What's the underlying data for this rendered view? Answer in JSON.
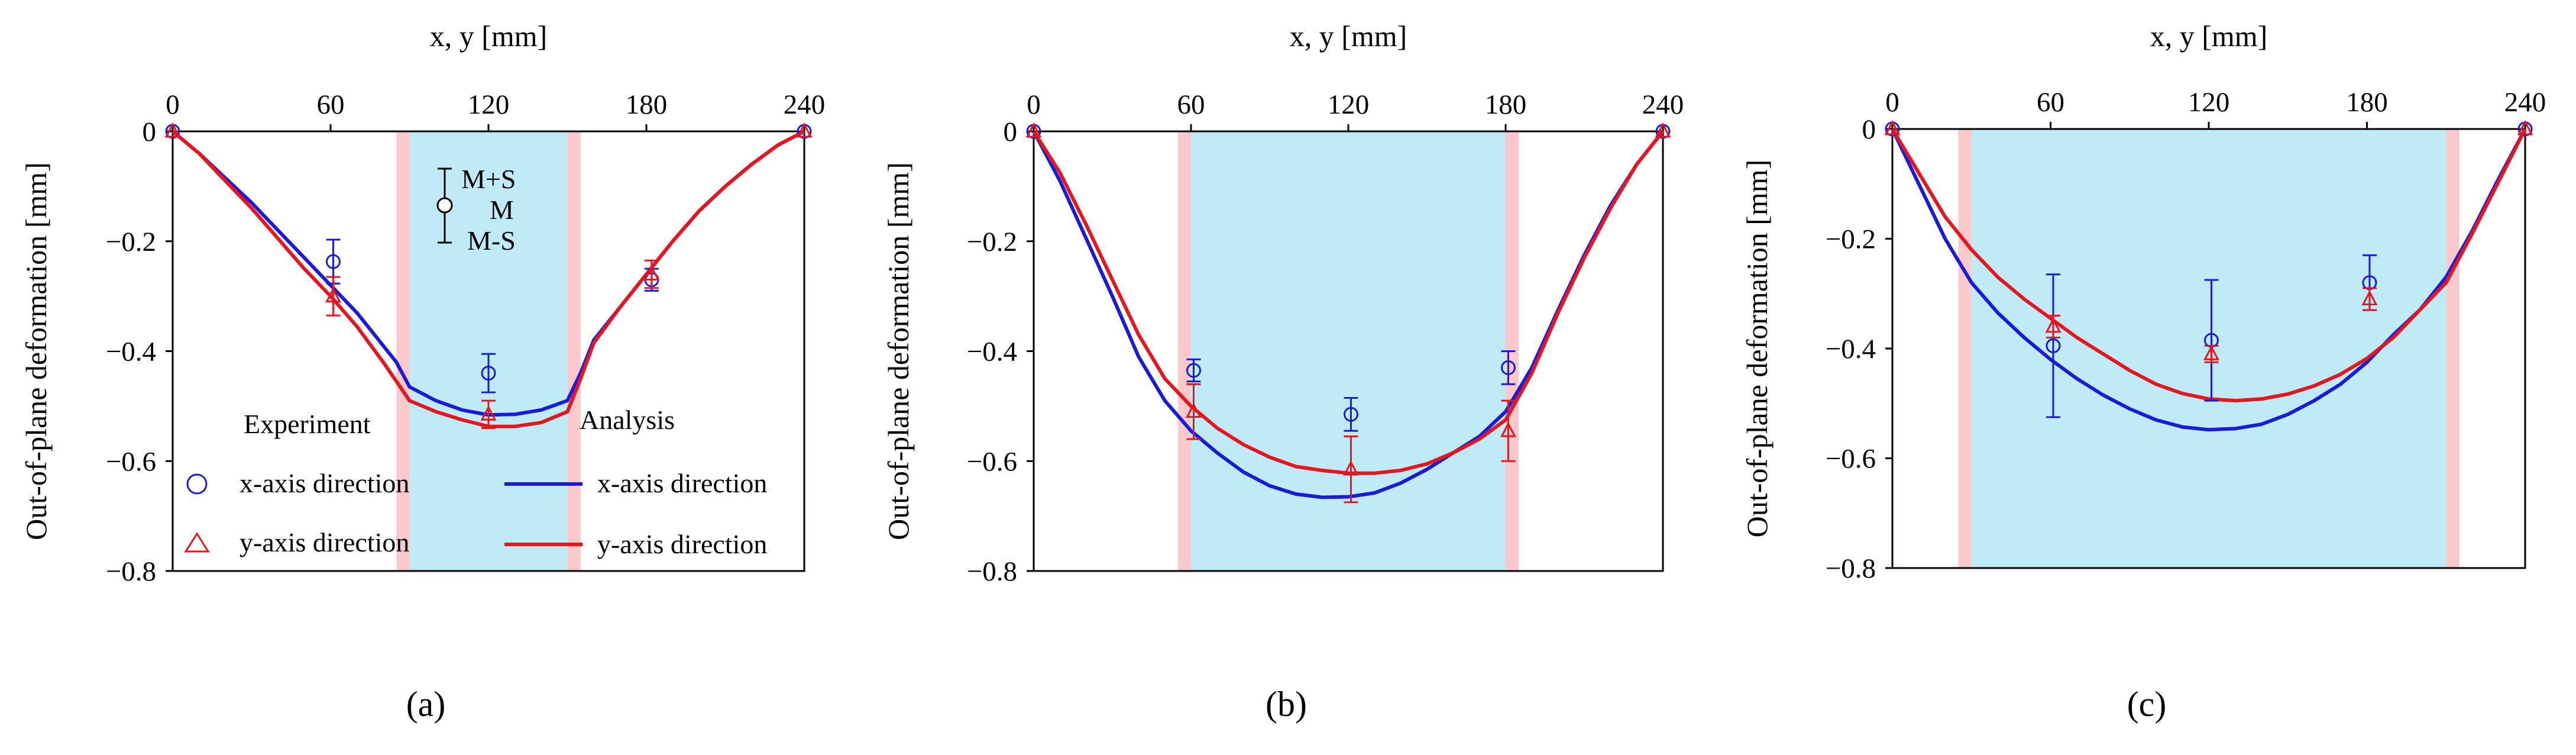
{
  "chart_data": [
    {
      "type": "line",
      "panel": "a",
      "caption": "(a)",
      "xlabel": "x, y [mm]",
      "ylabel": "Out-of-plane  deformation  [mm]",
      "xlim": [
        0,
        240
      ],
      "ylim": [
        -0.8,
        0
      ],
      "xticks": [
        0,
        60,
        120,
        180,
        240
      ],
      "yticks": [
        0,
        -0.2,
        -0.4,
        -0.6,
        -0.8
      ],
      "x_tick_labels": [
        "0",
        "60",
        "120",
        "180",
        "240"
      ],
      "y_tick_labels": [
        "0",
        "−0.2",
        "−0.4",
        "−0.6",
        "−0.8"
      ],
      "shaded_region": {
        "x": [
          90,
          150
        ],
        "color": "#bfeaf8"
      },
      "boundary_bands": [
        {
          "x": [
            85,
            90
          ],
          "color": "#f9c9cc"
        },
        {
          "x": [
            150,
            155
          ],
          "color": "#f9c9cc"
        }
      ],
      "series": [
        {
          "name": "x-axis  direction",
          "kind": "analysis",
          "color": "#1a1adb",
          "x": [
            0,
            10,
            20,
            30,
            40,
            50,
            60,
            70,
            80,
            85,
            90,
            100,
            110,
            120,
            130,
            140,
            150,
            155,
            160,
            170,
            180,
            190,
            200,
            210,
            220,
            230,
            240
          ],
          "y": [
            0,
            -0.04,
            -0.085,
            -0.13,
            -0.18,
            -0.23,
            -0.28,
            -0.33,
            -0.39,
            -0.42,
            -0.465,
            -0.49,
            -0.507,
            -0.516,
            -0.515,
            -0.507,
            -0.49,
            -0.44,
            -0.38,
            -0.32,
            -0.26,
            -0.2,
            -0.145,
            -0.1,
            -0.06,
            -0.025,
            0
          ]
        },
        {
          "name": "y-axis  direction",
          "kind": "analysis",
          "color": "#e8141e",
          "x": [
            0,
            10,
            20,
            30,
            40,
            50,
            60,
            70,
            80,
            85,
            90,
            100,
            110,
            120,
            130,
            140,
            150,
            155,
            160,
            170,
            180,
            190,
            200,
            210,
            220,
            230,
            240
          ],
          "y": [
            0,
            -0.04,
            -0.09,
            -0.14,
            -0.195,
            -0.25,
            -0.3,
            -0.355,
            -0.42,
            -0.455,
            -0.49,
            -0.51,
            -0.525,
            -0.537,
            -0.537,
            -0.53,
            -0.51,
            -0.45,
            -0.385,
            -0.32,
            -0.26,
            -0.2,
            -0.145,
            -0.1,
            -0.06,
            -0.025,
            0
          ]
        },
        {
          "name": "x-axis direction",
          "kind": "experiment",
          "marker": "circle",
          "color": "#1a1adb",
          "x": [
            0,
            61,
            120,
            182,
            240
          ],
          "y": [
            0,
            -0.237,
            -0.44,
            -0.27,
            0
          ],
          "err": [
            0,
            0.04,
            0.035,
            0.02,
            0
          ]
        },
        {
          "name": "y-axis direction",
          "kind": "experiment",
          "marker": "triangle",
          "color": "#e8141e",
          "x": [
            0,
            61,
            120,
            182,
            240
          ],
          "y": [
            0,
            -0.3,
            -0.515,
            -0.26,
            0
          ],
          "err": [
            0,
            0.035,
            0.025,
            0.025,
            0
          ]
        }
      ],
      "legend": {
        "experiment_title": "Experiment",
        "analysis_title": "Analysis",
        "experiment_x": "x-axis direction",
        "experiment_y": "y-axis direction",
        "analysis_x": "x-axis  direction",
        "analysis_y": "y-axis  direction",
        "errbar_key": {
          "upper": "M+S",
          "mid": "M",
          "lower": "M-S"
        }
      }
    },
    {
      "type": "line",
      "panel": "b",
      "caption": "(b)",
      "xlabel": "x, y [mm]",
      "ylabel": "Out-of-plane  deformation  [mm]",
      "xlim": [
        0,
        240
      ],
      "ylim": [
        -0.8,
        0
      ],
      "xticks": [
        0,
        60,
        120,
        180,
        240
      ],
      "yticks": [
        0,
        -0.2,
        -0.4,
        -0.6,
        -0.8
      ],
      "x_tick_labels": [
        "0",
        "60",
        "120",
        "180",
        "240"
      ],
      "y_tick_labels": [
        "0",
        "−0.2",
        "−0.4",
        "−0.6",
        "−0.8"
      ],
      "shaded_region": {
        "x": [
          60,
          180
        ],
        "color": "#bfeaf8"
      },
      "boundary_bands": [
        {
          "x": [
            55,
            60
          ],
          "color": "#f9c9cc"
        },
        {
          "x": [
            180,
            185
          ],
          "color": "#f9c9cc"
        }
      ],
      "series": [
        {
          "name": "x-axis  direction",
          "kind": "analysis",
          "color": "#1a1adb",
          "x": [
            0,
            10,
            20,
            30,
            40,
            50,
            60,
            70,
            80,
            90,
            100,
            110,
            120,
            130,
            140,
            150,
            160,
            170,
            180,
            190,
            200,
            210,
            220,
            230,
            240
          ],
          "y": [
            0,
            -0.09,
            -0.195,
            -0.3,
            -0.41,
            -0.49,
            -0.545,
            -0.585,
            -0.62,
            -0.645,
            -0.66,
            -0.666,
            -0.665,
            -0.658,
            -0.64,
            -0.615,
            -0.585,
            -0.555,
            -0.51,
            -0.43,
            -0.325,
            -0.225,
            -0.135,
            -0.06,
            0
          ]
        },
        {
          "name": "y-axis  direction",
          "kind": "analysis",
          "color": "#e8141e",
          "x": [
            0,
            10,
            20,
            30,
            40,
            50,
            60,
            70,
            80,
            90,
            100,
            110,
            120,
            130,
            140,
            150,
            160,
            170,
            180,
            190,
            200,
            210,
            220,
            230,
            240
          ],
          "y": [
            0,
            -0.075,
            -0.17,
            -0.27,
            -0.37,
            -0.45,
            -0.5,
            -0.54,
            -0.57,
            -0.593,
            -0.61,
            -0.617,
            -0.622,
            -0.622,
            -0.617,
            -0.605,
            -0.585,
            -0.56,
            -0.525,
            -0.44,
            -0.33,
            -0.23,
            -0.14,
            -0.06,
            0
          ]
        },
        {
          "name": "x-axis direction",
          "kind": "experiment",
          "marker": "circle",
          "color": "#1a1adb",
          "x": [
            0,
            61,
            121,
            181,
            240
          ],
          "y": [
            0,
            -0.435,
            -0.515,
            -0.43,
            0
          ],
          "err": [
            0,
            0.02,
            0.03,
            0.03,
            0
          ]
        },
        {
          "name": "y-axis direction",
          "kind": "experiment",
          "marker": "triangle",
          "color": "#e8141e",
          "x": [
            0,
            61,
            121,
            181,
            240
          ],
          "y": [
            0,
            -0.51,
            -0.615,
            -0.545,
            0
          ],
          "err": [
            0,
            0.05,
            0.06,
            0.055,
            0
          ]
        }
      ]
    },
    {
      "type": "line",
      "panel": "c",
      "caption": "(c)",
      "xlabel": "x, y [mm]",
      "ylabel": "Out-of-plane  deformation  [mm]",
      "xlim": [
        0,
        240
      ],
      "ylim": [
        -0.8,
        0
      ],
      "xticks": [
        0,
        60,
        120,
        180,
        240
      ],
      "yticks": [
        0,
        -0.2,
        -0.4,
        -0.6,
        -0.8
      ],
      "x_tick_labels": [
        "0",
        "60",
        "120",
        "180",
        "240"
      ],
      "y_tick_labels": [
        "0",
        "−0.2",
        "−0.4",
        "−0.6",
        "−0.8"
      ],
      "shaded_region": {
        "x": [
          30,
          210
        ],
        "color": "#bfeaf8"
      },
      "boundary_bands": [
        {
          "x": [
            25,
            30
          ],
          "color": "#f9c9cc"
        },
        {
          "x": [
            210,
            215
          ],
          "color": "#f9c9cc"
        }
      ],
      "series": [
        {
          "name": "x-axis  direction",
          "kind": "analysis",
          "color": "#1a1adb",
          "x": [
            0,
            10,
            20,
            30,
            40,
            50,
            60,
            70,
            80,
            90,
            100,
            110,
            120,
            130,
            140,
            150,
            160,
            170,
            180,
            190,
            200,
            210,
            220,
            230,
            240
          ],
          "y": [
            0,
            -0.1,
            -0.2,
            -0.28,
            -0.335,
            -0.38,
            -0.42,
            -0.455,
            -0.485,
            -0.51,
            -0.53,
            -0.543,
            -0.548,
            -0.546,
            -0.538,
            -0.52,
            -0.495,
            -0.465,
            -0.425,
            -0.375,
            -0.33,
            -0.27,
            -0.185,
            -0.09,
            0
          ]
        },
        {
          "name": "y-axis  direction",
          "kind": "analysis",
          "color": "#e8141e",
          "x": [
            0,
            10,
            20,
            30,
            40,
            50,
            60,
            70,
            80,
            90,
            100,
            110,
            120,
            130,
            140,
            150,
            160,
            170,
            180,
            190,
            200,
            210,
            220,
            230,
            240
          ],
          "y": [
            0,
            -0.08,
            -0.16,
            -0.22,
            -0.27,
            -0.31,
            -0.345,
            -0.38,
            -0.41,
            -0.44,
            -0.465,
            -0.482,
            -0.492,
            -0.495,
            -0.492,
            -0.483,
            -0.468,
            -0.447,
            -0.418,
            -0.38,
            -0.33,
            -0.28,
            -0.19,
            -0.095,
            0
          ]
        },
        {
          "name": "x-axis direction",
          "kind": "experiment",
          "marker": "circle",
          "color": "#1a1adb",
          "x": [
            0,
            61,
            121,
            181,
            240
          ],
          "y": [
            0,
            -0.395,
            -0.385,
            -0.28,
            0
          ],
          "err": [
            0,
            0.13,
            0.11,
            0.05,
            0
          ]
        },
        {
          "name": "y-axis direction",
          "kind": "experiment",
          "marker": "triangle",
          "color": "#e8141e",
          "x": [
            0,
            61,
            121,
            181,
            240
          ],
          "y": [
            0,
            -0.36,
            -0.41,
            -0.31,
            0
          ],
          "err": [
            0,
            0.02,
            0.015,
            0.02,
            0
          ]
        }
      ]
    }
  ]
}
